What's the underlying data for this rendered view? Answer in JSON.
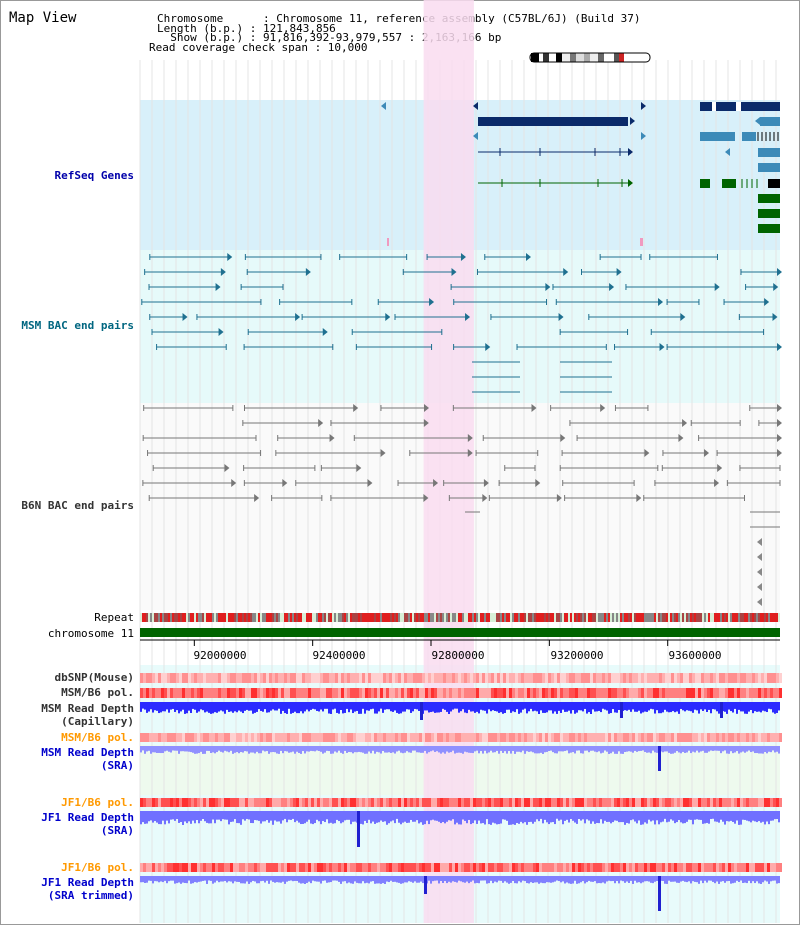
{
  "view_title": "Map View",
  "header": {
    "line1": "Chromosome      : Chromosome 11, reference assembly (C57BL/6J) (Build 37)",
    "line2": "Length (b.p.) : 121,843,856",
    "line3": "  Show (b.p.) : 91,816,392-93,979,557 : 2,163,166 bp",
    "line4": "Read coverage check span : 10,000"
  },
  "tracks": {
    "refseq": "RefSeq Genes",
    "msm_bac": "MSM BAC end pairs",
    "b6n_bac": "B6N BAC end pairs",
    "repeat": "Repeat",
    "chromosome": "chromosome 11",
    "dbsnp": "dbSNP(Mouse)",
    "msm_b6_pol_1": "MSM/B6 pol.",
    "msm_depth_cap_1": "MSM Read Depth",
    "msm_depth_cap_2": "(Capillary)",
    "msm_b6_pol_2": "MSM/B6 pol.",
    "msm_depth_sra_1": "MSM Read Depth",
    "msm_depth_sra_2": "(SRA)",
    "jf1_b6_pol_1": "JF1/B6 pol.",
    "jf1_depth_sra_1": "JF1 Read Depth",
    "jf1_depth_sra_2": "(SRA)",
    "jf1_b6_pol_2": "JF1/B6 pol.",
    "jf1_depth_trim_1": "JF1 Read Depth",
    "jf1_depth_trim_2": "(SRA trimmed)"
  },
  "axis": {
    "ticks": [
      "92000000",
      "92400000",
      "92800000",
      "93200000",
      "93600000"
    ],
    "range": [
      91816392,
      93979557
    ]
  },
  "highlight_range": [
    92775000,
    92945000
  ],
  "colors": {
    "refseq_bg": "#d8f0fa",
    "msm_bg": "#e6fafa",
    "b6n_bg": "#fafafa",
    "highlight": "#f9dcf0",
    "refseq_label": "#0000aa",
    "msm_label": "#006680",
    "gray_label": "#333333",
    "orange_label": "#ff9900",
    "blue_label": "#0000cc",
    "gene_dark": "#0a2a6a",
    "gene_mid": "#3c8ab8",
    "gene_green": "#006400",
    "chrom_green": "#006400",
    "depth_blue": "#3a3aff"
  }
}
